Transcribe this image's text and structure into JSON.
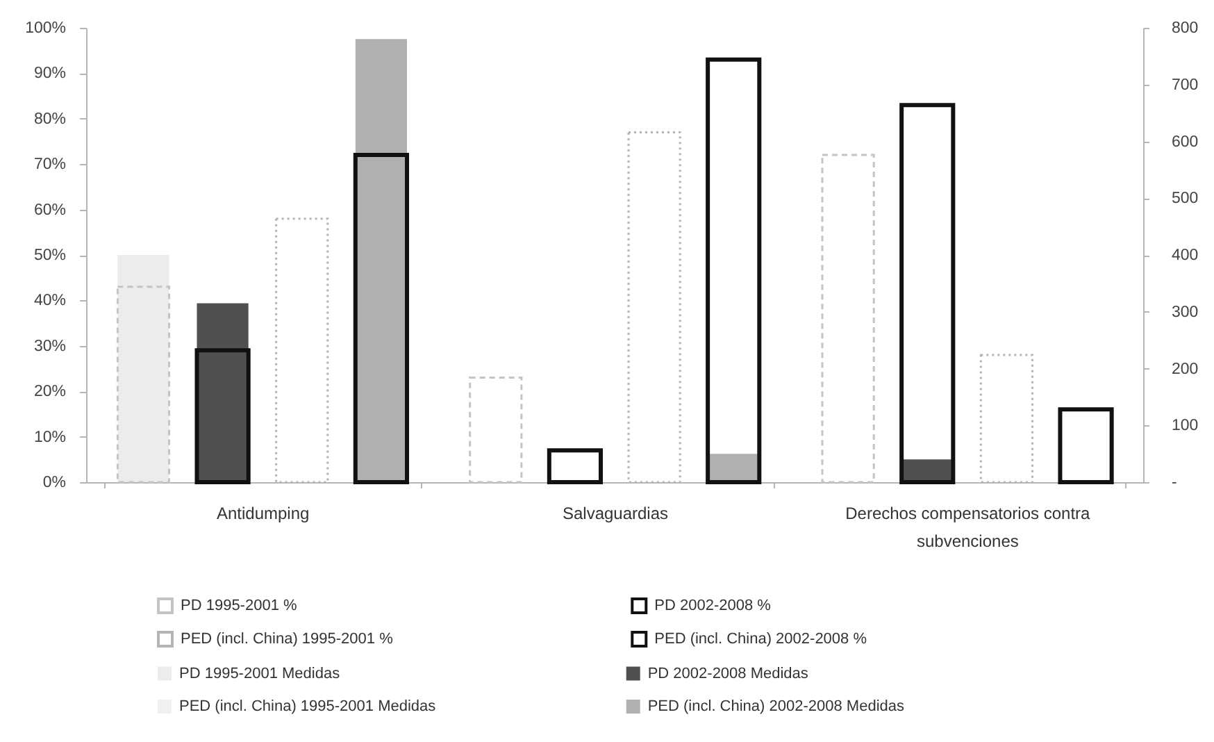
{
  "chart_data": {
    "type": "bar",
    "categories": [
      "Antidumping",
      "Salvaguardias",
      "Derechos compensatorios contra subvenciones"
    ],
    "series": [
      {
        "name": "PD 1995-2001 %",
        "color": "#c4c4c4",
        "line_style": "dashed",
        "values": [
          43,
          23,
          72
        ]
      },
      {
        "name": "PD 2002-2008 %",
        "color": "#111111",
        "values": [
          29,
          7,
          83
        ]
      },
      {
        "name": "PED (incl. China) 1995-2001 %",
        "color": "#b4b4b4",
        "line_style": "dotted",
        "values": [
          58,
          77,
          28
        ]
      },
      {
        "name": "PED (incl. China) 2002-2008 %",
        "color": "#111111",
        "values": [
          72,
          93,
          16
        ]
      },
      {
        "name": "PD 1995-2001 Medidas",
        "color": "#ececec",
        "axis": "y2",
        "values": [
          400,
          null,
          null
        ]
      },
      {
        "name": "PD 2002-2008 Medidas",
        "color": "#505050",
        "axis": "y2",
        "values": [
          315,
          null,
          40
        ]
      },
      {
        "name": "PED (incl. China) 1995-2001 Medidas",
        "color": "#f0f0f0",
        "axis": "y2",
        "values": [
          null,
          null,
          null
        ]
      },
      {
        "name": "PED (incl. China) 2002-2008 Medidas",
        "color": "#b0b0b0",
        "axis": "y2",
        "values": [
          780,
          50,
          null
        ]
      }
    ],
    "ylim": [
      0,
      100
    ],
    "yticks": [
      {
        "value": 0,
        "label": "0%"
      },
      {
        "value": 10,
        "label": "10%"
      },
      {
        "value": 20,
        "label": "20%"
      },
      {
        "value": 30,
        "label": "30%"
      },
      {
        "value": 40,
        "label": "40%"
      },
      {
        "value": 50,
        "label": "50%"
      },
      {
        "value": 60,
        "label": "60%"
      },
      {
        "value": 70,
        "label": "70%"
      },
      {
        "value": 80,
        "label": "80%"
      },
      {
        "value": 90,
        "label": "90%"
      },
      {
        "value": 100,
        "label": "100%"
      }
    ],
    "y2lim": [
      0,
      800
    ],
    "y2ticks": [
      {
        "value": 0,
        "label": "-"
      },
      100,
      200,
      300,
      400,
      500,
      600,
      700,
      800
    ],
    "legend": "bottom"
  }
}
